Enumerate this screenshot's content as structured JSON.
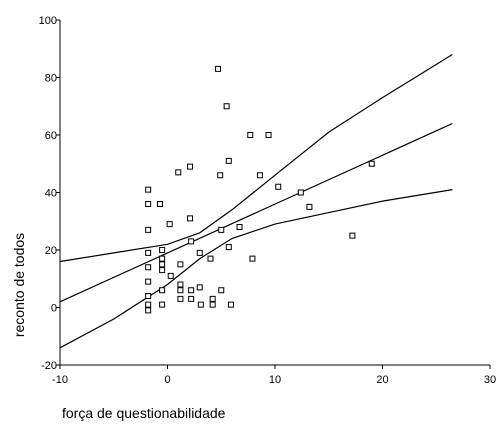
{
  "chart_data": {
    "type": "scatter",
    "xlabel": "força de questionabilidade",
    "ylabel": "reconto de todos",
    "xlim": [
      -10,
      30
    ],
    "ylim": [
      -20,
      100
    ],
    "xticks": [
      "-10",
      "0",
      "10",
      "20",
      "30"
    ],
    "yticks": [
      "-20",
      "0",
      "20",
      "40",
      "60",
      "80",
      "100"
    ],
    "grid": false,
    "legend": "none",
    "points": [
      {
        "x": 4.7,
        "y": 83
      },
      {
        "x": 5.5,
        "y": 70
      },
      {
        "x": 7.7,
        "y": 60
      },
      {
        "x": 9.4,
        "y": 60
      },
      {
        "x": 5.7,
        "y": 51
      },
      {
        "x": 2.1,
        "y": 49
      },
      {
        "x": 1.0,
        "y": 47
      },
      {
        "x": 4.9,
        "y": 46
      },
      {
        "x": 8.6,
        "y": 46
      },
      {
        "x": 19.0,
        "y": 50
      },
      {
        "x": 10.3,
        "y": 42
      },
      {
        "x": 12.4,
        "y": 40
      },
      {
        "x": 13.2,
        "y": 35
      },
      {
        "x": 17.2,
        "y": 25
      },
      {
        "x": -1.8,
        "y": 41
      },
      {
        "x": -1.8,
        "y": 36
      },
      {
        "x": -0.7,
        "y": 36
      },
      {
        "x": 2.1,
        "y": 31
      },
      {
        "x": 0.2,
        "y": 29
      },
      {
        "x": -1.8,
        "y": 27
      },
      {
        "x": 5.0,
        "y": 27
      },
      {
        "x": 6.7,
        "y": 28
      },
      {
        "x": 2.2,
        "y": 23
      },
      {
        "x": 5.7,
        "y": 21
      },
      {
        "x": -0.5,
        "y": 20
      },
      {
        "x": -1.8,
        "y": 19
      },
      {
        "x": 3.0,
        "y": 19
      },
      {
        "x": 7.9,
        "y": 17
      },
      {
        "x": -0.5,
        "y": 17
      },
      {
        "x": -0.5,
        "y": 15
      },
      {
        "x": 1.2,
        "y": 15
      },
      {
        "x": -1.8,
        "y": 14
      },
      {
        "x": 4.0,
        "y": 17
      },
      {
        "x": -0.5,
        "y": 13
      },
      {
        "x": 0.3,
        "y": 11
      },
      {
        "x": -1.8,
        "y": 9
      },
      {
        "x": 1.2,
        "y": 8
      },
      {
        "x": 1.2,
        "y": 6
      },
      {
        "x": 2.2,
        "y": 6
      },
      {
        "x": 3.0,
        "y": 7
      },
      {
        "x": -0.5,
        "y": 6
      },
      {
        "x": 5.0,
        "y": 6
      },
      {
        "x": -1.8,
        "y": 4
      },
      {
        "x": 1.2,
        "y": 3
      },
      {
        "x": 2.2,
        "y": 3
      },
      {
        "x": 4.2,
        "y": 3
      },
      {
        "x": 4.2,
        "y": 1
      },
      {
        "x": 3.1,
        "y": 1
      },
      {
        "x": -0.5,
        "y": 1
      },
      {
        "x": 5.9,
        "y": 1
      },
      {
        "x": -1.8,
        "y": 1
      },
      {
        "x": -1.8,
        "y": -1
      }
    ],
    "fit_line": [
      {
        "x": -10,
        "y": 2
      },
      {
        "x": 26.5,
        "y": 64
      }
    ],
    "upper_band": [
      {
        "x": -10,
        "y": 16
      },
      {
        "x": -5,
        "y": 19
      },
      {
        "x": 0,
        "y": 22
      },
      {
        "x": 3,
        "y": 26
      },
      {
        "x": 6,
        "y": 34
      },
      {
        "x": 10,
        "y": 46
      },
      {
        "x": 15,
        "y": 61
      },
      {
        "x": 20,
        "y": 73
      },
      {
        "x": 26.5,
        "y": 88
      }
    ],
    "lower_band": [
      {
        "x": -10,
        "y": -14
      },
      {
        "x": -5,
        "y": -4
      },
      {
        "x": 0,
        "y": 8
      },
      {
        "x": 3,
        "y": 17
      },
      {
        "x": 6,
        "y": 24
      },
      {
        "x": 10,
        "y": 29
      },
      {
        "x": 15,
        "y": 33
      },
      {
        "x": 20,
        "y": 37
      },
      {
        "x": 26.5,
        "y": 41
      }
    ]
  }
}
